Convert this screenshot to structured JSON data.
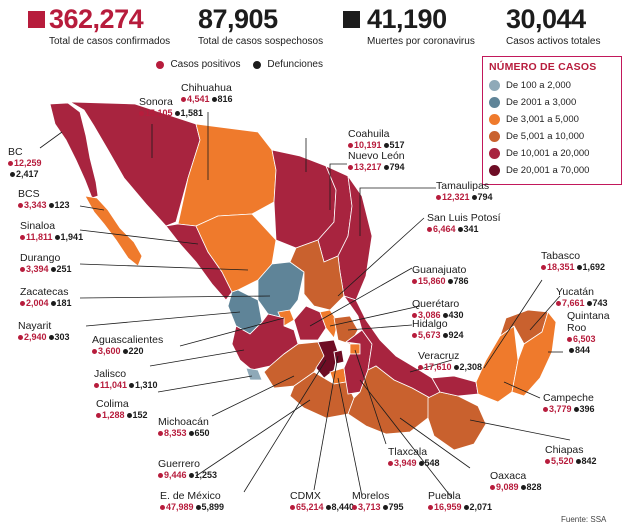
{
  "header": {
    "confirmed": {
      "value": "362,274",
      "label": "Total de casos confirmados"
    },
    "suspected": {
      "value": "87,905",
      "label": "Total de casos sospechosos"
    },
    "deaths": {
      "value": "41,190",
      "label": "Muertes por coronavirus"
    },
    "active": {
      "value": "30,044",
      "label": "Casos activos totales"
    }
  },
  "map_legend": {
    "positive": "Casos positivos",
    "deaths": "Defunciones"
  },
  "cases_legend": {
    "title": "NÚMERO DE CASOS",
    "items": [
      {
        "label": "De 100 a 2,000",
        "color": "#8fa9b8"
      },
      {
        "label": "De 2001 a 3,000",
        "color": "#5f8498"
      },
      {
        "label": "De 3,001 a 5,000",
        "color": "#ef7a2c"
      },
      {
        "label": "De 5,001 a 10,000",
        "color": "#c9612e"
      },
      {
        "label": "De 10,001 a 20,000",
        "color": "#a8243f"
      },
      {
        "label": "De 20,001 a 70,000",
        "color": "#6e0d25"
      }
    ]
  },
  "states": {
    "sonora": {
      "name": "Sonora",
      "pos": "15,105",
      "dth": "1,581"
    },
    "chihuahua": {
      "name": "Chihuahua",
      "pos": "4,541",
      "dth": "816"
    },
    "coahuila": {
      "name": "Coahuila",
      "pos": "10,191",
      "dth": "517"
    },
    "nuevo_leon": {
      "name": "Nuevo León",
      "pos": "13,217",
      "dth": "794"
    },
    "bc": {
      "name": "BC",
      "pos": "12,259",
      "dth": "2,417"
    },
    "bcs": {
      "name": "BCS",
      "pos": "3,343",
      "dth": "123"
    },
    "sinaloa": {
      "name": "Sinaloa",
      "pos": "11,811",
      "dth": "1,941"
    },
    "durango": {
      "name": "Durango",
      "pos": "3,394",
      "dth": "251"
    },
    "zacatecas": {
      "name": "Zacatecas",
      "pos": "2,004",
      "dth": "181"
    },
    "nayarit": {
      "name": "Nayarit",
      "pos": "2,940",
      "dth": "303"
    },
    "aguascalientes": {
      "name": "Aguascalientes",
      "pos": "3,600",
      "dth": "220"
    },
    "jalisco": {
      "name": "Jalisco",
      "pos": "11,041",
      "dth": "1,310"
    },
    "colima": {
      "name": "Colima",
      "pos": "1,288",
      "dth": "152"
    },
    "michoacan": {
      "name": "Michoacán",
      "pos": "8,353",
      "dth": "650"
    },
    "guerrero": {
      "name": "Guerrero",
      "pos": "9,446",
      "dth": "1,253"
    },
    "edomex": {
      "name": "E. de México",
      "pos": "47,989",
      "dth": "5,899"
    },
    "cdmx": {
      "name": "CDMX",
      "pos": "65,214",
      "dth": "8,440"
    },
    "morelos": {
      "name": "Morelos",
      "pos": "3,713",
      "dth": "795"
    },
    "puebla": {
      "name": "Puebla",
      "pos": "16,959",
      "dth": "2,071"
    },
    "oaxaca": {
      "name": "Oaxaca",
      "pos": "9,089",
      "dth": "828"
    },
    "tlaxcala": {
      "name": "Tlaxcala",
      "pos": "3,949",
      "dth": "548"
    },
    "chiapas": {
      "name": "Chiapas",
      "pos": "5,520",
      "dth": "842"
    },
    "campeche": {
      "name": "Campeche",
      "pos": "3,779",
      "dth": "396"
    },
    "quintana_roo": {
      "name": "Quintana Roo",
      "pos": "6,503",
      "dth": "844"
    },
    "yucatan": {
      "name": "Yucatán",
      "pos": "7,661",
      "dth": "743"
    },
    "tabasco": {
      "name": "Tabasco",
      "pos": "18,351",
      "dth": "1,692"
    },
    "veracruz": {
      "name": "Veracruz",
      "pos": "17,610",
      "dth": "2,308"
    },
    "hidalgo": {
      "name": "Hidalgo",
      "pos": "5,673",
      "dth": "924"
    },
    "queretaro": {
      "name": "Querétaro",
      "pos": "3,086",
      "dth": "430"
    },
    "guanajuato": {
      "name": "Guanajuato",
      "pos": "15,860",
      "dth": "786"
    },
    "slp": {
      "name": "San Luis Potosí",
      "pos": "6,464",
      "dth": "341"
    },
    "tamaulipas": {
      "name": "Tamaulipas",
      "pos": "12,321",
      "dth": "794"
    }
  },
  "source": "Fuente: SSA"
}
